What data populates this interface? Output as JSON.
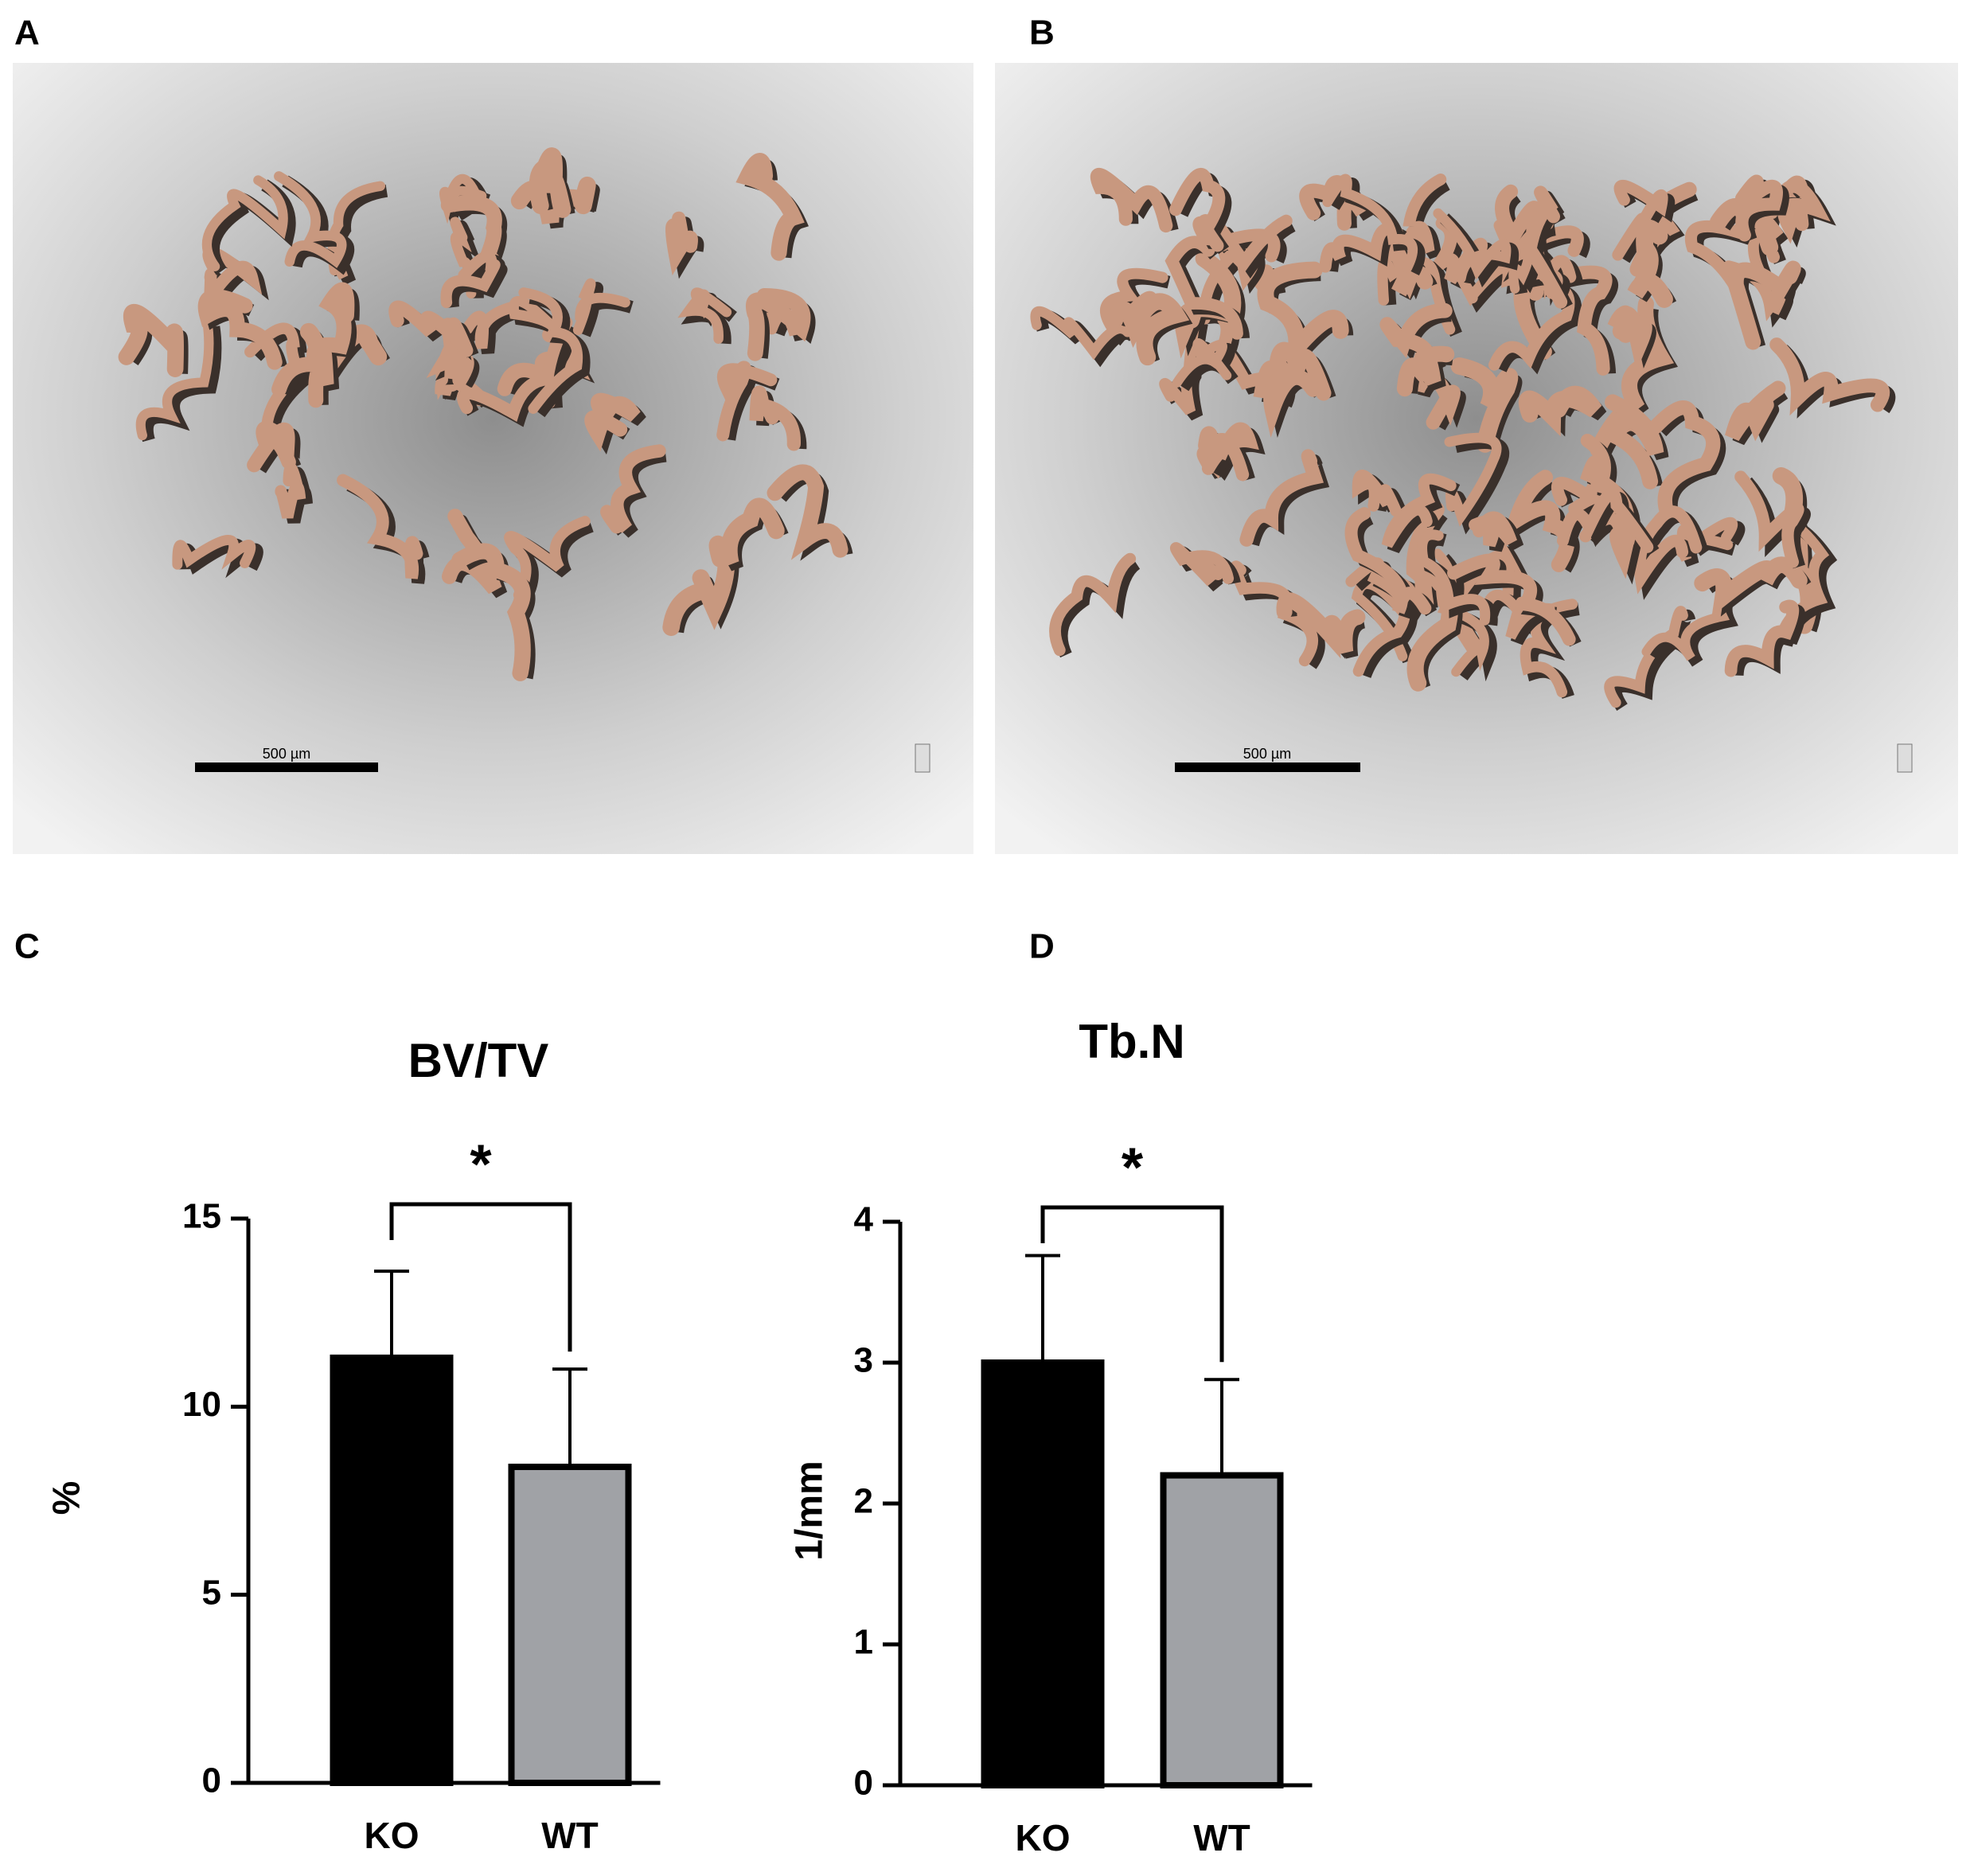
{
  "images": [
    {
      "panel": "A",
      "scale_bar_label": "500 µm"
    },
    {
      "panel": "B",
      "scale_bar_label": "500 µm"
    }
  ],
  "chart_data": [
    {
      "type": "bar",
      "panel": "C",
      "title": "BV/TV",
      "y_label": "%",
      "categories": [
        "KO",
        "WT"
      ],
      "values": [
        11.3,
        8.4
      ],
      "errors": [
        2.3,
        2.6
      ],
      "colors": [
        "#000000",
        "#a0a2a6"
      ],
      "ylim": [
        0,
        15
      ],
      "yticks": [
        0,
        5,
        10,
        15
      ],
      "annotation": "*"
    },
    {
      "type": "bar",
      "panel": "D",
      "title": "Tb.N",
      "y_label": "1/mm",
      "categories": [
        "KO",
        "WT"
      ],
      "values": [
        3.0,
        2.2
      ],
      "errors": [
        0.76,
        0.68
      ],
      "colors": [
        "#000000",
        "#a0a2a6"
      ],
      "ylim": [
        0,
        4
      ],
      "yticks": [
        0,
        1,
        2,
        3,
        4
      ],
      "annotation": "*"
    }
  ]
}
